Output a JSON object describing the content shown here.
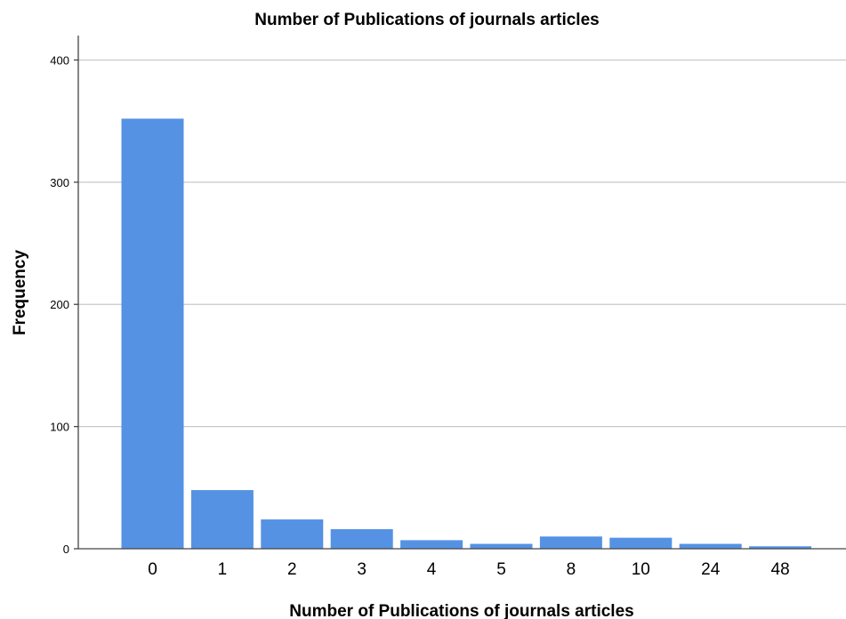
{
  "chart_data": {
    "type": "bar",
    "title": "Number of Publications of journals articles",
    "xlabel": "Number of Publications of journals articles",
    "ylabel": "Frequency",
    "categories": [
      "0",
      "1",
      "2",
      "3",
      "4",
      "5",
      "8",
      "10",
      "24",
      "48"
    ],
    "values": [
      352,
      48,
      24,
      16,
      7,
      4,
      10,
      9,
      4,
      2
    ],
    "ylim": [
      0,
      420
    ],
    "yticks": [
      "0",
      "100",
      "200",
      "300",
      "400"
    ],
    "grid": true,
    "legend": "none",
    "bar_color": "#5592E4",
    "grid_color": "#C8C8C8",
    "axis_color": "#444444"
  }
}
